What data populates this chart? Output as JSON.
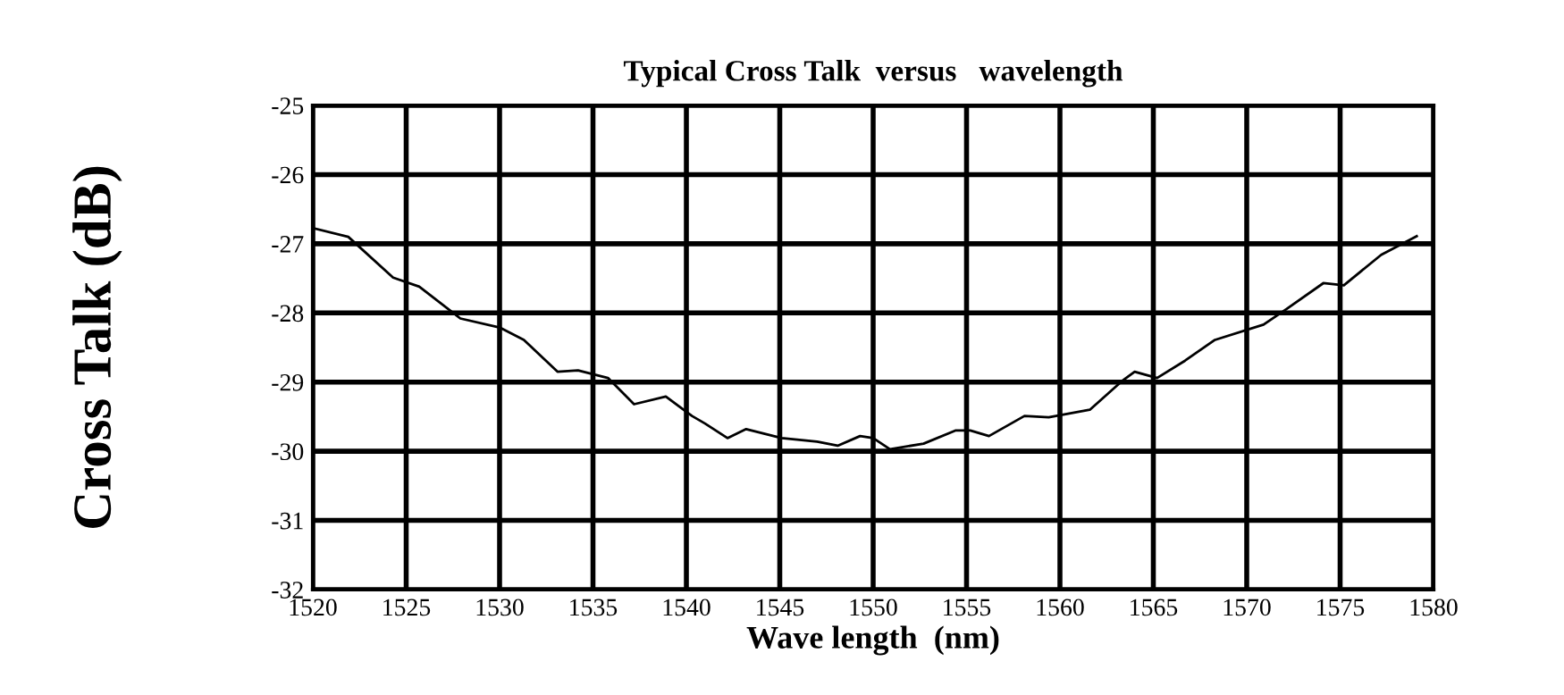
{
  "chart_data": {
    "type": "line",
    "title": "Typical Cross Talk  versus   wavelength",
    "xlabel": "Wave length  (nm)",
    "ylabel": "Cross Talk (dB)",
    "x": [
      1520.1,
      1521.9,
      1524.3,
      1525.7,
      1527.9,
      1530.0,
      1531.3,
      1533.1,
      1534.2,
      1535.8,
      1537.2,
      1538.9,
      1540.3,
      1541.0,
      1542.2,
      1543.2,
      1545.1,
      1547.0,
      1548.1,
      1549.3,
      1550.0,
      1550.9,
      1552.7,
      1554.4,
      1555.2,
      1556.2,
      1558.1,
      1559.4,
      1561.6,
      1563.3,
      1564.0,
      1565.2,
      1566.7,
      1568.3,
      1570.9,
      1572.1,
      1574.1,
      1575.2,
      1577.2,
      1579.1
    ],
    "series": [
      {
        "color": "#000000",
        "values": [
          -26.78,
          -26.9,
          -27.49,
          -27.62,
          -28.08,
          -28.21,
          -28.39,
          -28.85,
          -28.83,
          -28.94,
          -29.32,
          -29.21,
          -29.49,
          -29.6,
          -29.81,
          -29.68,
          -29.81,
          -29.86,
          -29.92,
          -29.78,
          -29.81,
          -29.97,
          -29.89,
          -29.7,
          -29.7,
          -29.78,
          -29.49,
          -29.51,
          -29.4,
          -28.99,
          -28.85,
          -28.94,
          -28.69,
          -28.39,
          -28.17,
          -27.95,
          -27.57,
          -27.6,
          -27.16,
          -26.89
        ]
      }
    ],
    "xlim": [
      1520,
      1580
    ],
    "xticks": [
      1520,
      1525,
      1530,
      1535,
      1540,
      1545,
      1550,
      1555,
      1560,
      1565,
      1570,
      1575,
      1580
    ],
    "ylim": [
      -32,
      -25
    ],
    "yticks": [
      -32,
      -31,
      -30,
      -29,
      -28,
      -27,
      -26,
      -25
    ],
    "grid": true,
    "line_style": "solid"
  }
}
